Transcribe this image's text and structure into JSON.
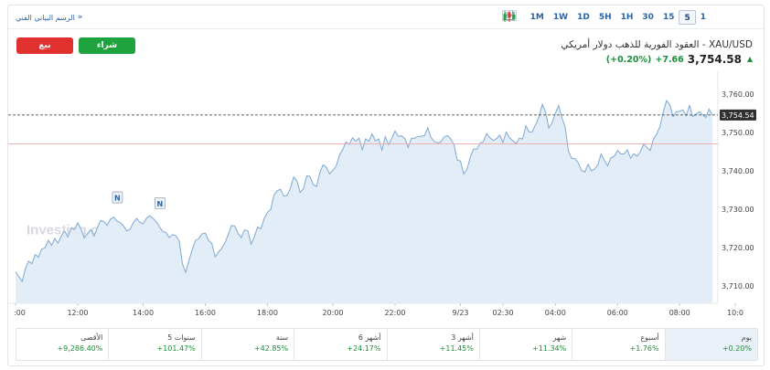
{
  "toolbar": {
    "advanced_chart_link": "الرسم البياني الفني",
    "advanced_chevron": "»",
    "timeframes": [
      {
        "label": "1M",
        "active": false
      },
      {
        "label": "1W",
        "active": false
      },
      {
        "label": "1D",
        "active": false
      },
      {
        "label": "5H",
        "active": false
      },
      {
        "label": "1H",
        "active": false
      },
      {
        "label": "30",
        "active": false
      },
      {
        "label": "15",
        "active": false
      },
      {
        "label": "5",
        "active": true
      },
      {
        "label": "1",
        "active": false
      }
    ],
    "icons": {
      "left": "news-panel-icon",
      "area": "area-chart-icon",
      "candle": "candlestick-icon"
    }
  },
  "instrument": {
    "title": "XAU/USD - العقود الفورية للذهب دولار أمريكي",
    "last": "3,754.58",
    "change": "+7.66",
    "change_pct": "(+0.20%)"
  },
  "actions": {
    "sell": "بيع",
    "buy": "شراء"
  },
  "chart_data": {
    "type": "area",
    "watermark": "Investing.com",
    "y_ticks": [
      "3,760.00",
      "3,750.00",
      "3,740.00",
      "3,730.00",
      "3,720.00",
      "3,710.00"
    ],
    "y_tick_values": [
      3760,
      3750,
      3740,
      3730,
      3720,
      3710
    ],
    "ylim": [
      3705.5,
      3764.5
    ],
    "x_ticks": [
      ":00",
      "12:00",
      "14:00",
      "16:00",
      "18:00",
      "20:00",
      "22:00",
      "9/23",
      "02:30",
      "04:00",
      "06:00",
      "08:00",
      "10:0"
    ],
    "x_tick_index": [
      0,
      19,
      39,
      58,
      77,
      97,
      116,
      136,
      149,
      165,
      184,
      203,
      220
    ],
    "last_price_label": "3,754.54",
    "last_price_value": 3754.54,
    "reference_value": 3747.0,
    "news_markers": [
      {
        "label": "N",
        "index": 31
      },
      {
        "label": "N",
        "index": 44
      }
    ],
    "values": [
      3713.7,
      3712.5,
      3711.2,
      3714.5,
      3716.5,
      3715.8,
      3718.2,
      3717.5,
      3719.6,
      3719.9,
      3721.9,
      3720.6,
      3722.4,
      3721.2,
      3723.1,
      3724.3,
      3722.8,
      3725.1,
      3724.7,
      3726.4,
      3724.9,
      3722.5,
      3723.6,
      3724.7,
      3723.0,
      3725.2,
      3727.1,
      3726.8,
      3725.8,
      3727.4,
      3727.9,
      3726.9,
      3726.5,
      3725.6,
      3724.4,
      3724.8,
      3726.5,
      3727.6,
      3726.6,
      3726.2,
      3727.6,
      3728.3,
      3727.6,
      3726.8,
      3725.4,
      3724.2,
      3723.9,
      3722.6,
      3723.4,
      3723.1,
      3721.8,
      3715.8,
      3713.6,
      3716.6,
      3719.5,
      3721.9,
      3722.3,
      3723.6,
      3723.8,
      3721.8,
      3721.1,
      3717.6,
      3718.8,
      3719.8,
      3721.3,
      3723.3,
      3725.8,
      3725.6,
      3723.7,
      3722.6,
      3724.6,
      3724.4,
      3720.9,
      3722.9,
      3725.4,
      3724.9,
      3727.6,
      3729.2,
      3729.9,
      3733.7,
      3734.8,
      3735.2,
      3733.4,
      3733.6,
      3735.4,
      3738.4,
      3737.4,
      3734.4,
      3735.3,
      3738.7,
      3738.5,
      3736.4,
      3735.9,
      3739.5,
      3741.6,
      3740.9,
      3739.2,
      3740.1,
      3741.2,
      3744.1,
      3745.5,
      3747.5,
      3746.9,
      3748.6,
      3747.7,
      3748.5,
      3745.5,
      3748.3,
      3747.7,
      3749.6,
      3747.8,
      3748.3,
      3745.4,
      3748.9,
      3746.8,
      3748.5,
      3750.4,
      3749.0,
      3749.1,
      3748.4,
      3746.1,
      3748.5,
      3748.5,
      3749.0,
      3749.0,
      3749.2,
      3751.2,
      3748.7,
      3747.6,
      3747.3,
      3747.5,
      3748.8,
      3749.2,
      3748.3,
      3746.9,
      3742.8,
      3742.6,
      3739.2,
      3740.4,
      3743.6,
      3745.7,
      3745.6,
      3747.2,
      3747.6,
      3749.7,
      3748.6,
      3747.9,
      3748.4,
      3749.3,
      3747.4,
      3750.1,
      3748.6,
      3747.8,
      3747.1,
      3748.5,
      3748.3,
      3751.7,
      3750.1,
      3750.2,
      3752.1,
      3754.0,
      3757.3,
      3755.4,
      3751.2,
      3752.5,
      3755.0,
      3757.0,
      3753.9,
      3751.4,
      3745.1,
      3743.2,
      3743.2,
      3742.1,
      3740.1,
      3739.7,
      3741.7,
      3740.0,
      3740.5,
      3741.6,
      3744.4,
      3742.7,
      3741.3,
      3743.4,
      3743.8,
      3745.3,
      3744.4,
      3744.4,
      3745.5,
      3743.3,
      3744.5,
      3743.8,
      3745.0,
      3747.0,
      3746.1,
      3745.3,
      3748.3,
      3749.6,
      3751.6,
      3755.4,
      3758.3,
      3757.2,
      3754.1,
      3755.4,
      3755.5,
      3755.9,
      3754.4,
      3757.0,
      3754.1,
      3754.8,
      3755.4,
      3754.6,
      3753.9,
      3756.1,
      3754.5
    ]
  },
  "performance": [
    {
      "label": "يوم",
      "value": "+0.20%",
      "active": true
    },
    {
      "label": "أسبوع",
      "value": "+1.76%",
      "active": false
    },
    {
      "label": "شهر",
      "value": "+11.34%",
      "active": false
    },
    {
      "label": "3 أشهر",
      "value": "+11.45%",
      "active": false
    },
    {
      "label": "6 أشهر",
      "value": "+24.17%",
      "active": false
    },
    {
      "label": "سنة",
      "value": "+42.85%",
      "active": false
    },
    {
      "label": "5 سنوات",
      "value": "+101.47%",
      "active": false
    },
    {
      "label": "الأقصى",
      "value": "+9,286.40%",
      "active": false
    }
  ]
}
